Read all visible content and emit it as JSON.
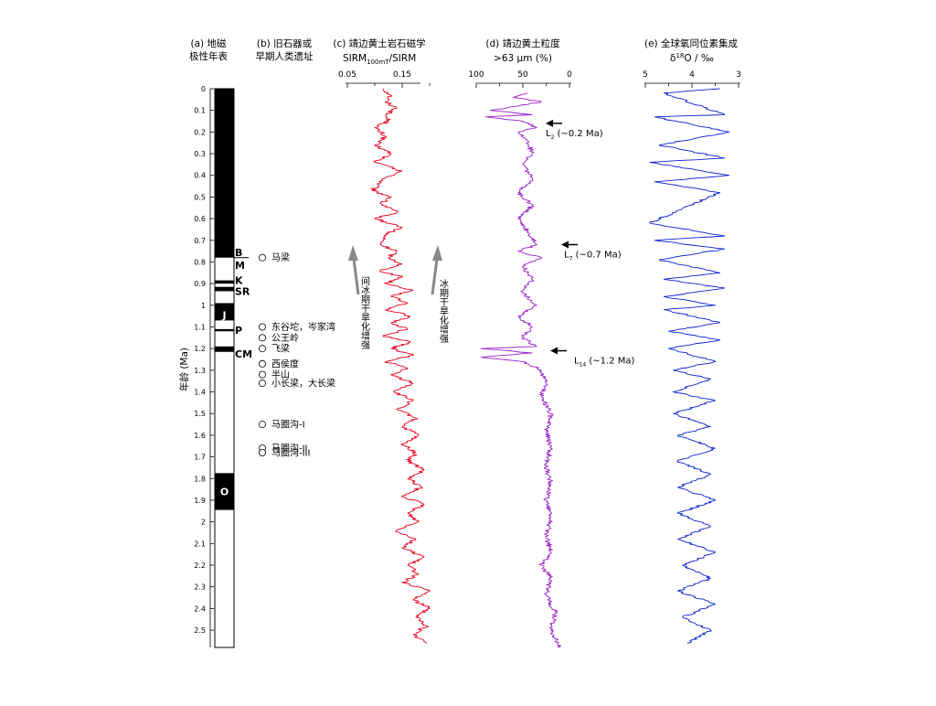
{
  "headers": {
    "a": [
      "(a) 地磁",
      "极性年表"
    ],
    "b": [
      "(b) 旧石器或",
      "早期人类遗址"
    ],
    "c_line1": "(c) 靖边黄土岩石磁学",
    "c_line2_main": "SIRM",
    "c_line2_sub": "100mT",
    "c_line2_tail": "/SIRM",
    "d_line1": "(d) 靖边黄土粒度",
    "d_line2": ">63 μm (%)",
    "e_line1": "(e) 全球氧同位素集成",
    "e_line2_delta": "δ",
    "e_line2_sup": "18",
    "e_line2_tail": "O / ‰"
  },
  "y_axis": {
    "label": "年龄 (Ma)",
    "min": 0,
    "max": 2.58,
    "ticks": [
      "0",
      "0.1",
      "0.2",
      "0.3",
      "0.4",
      "0.5",
      "0.6",
      "0.7",
      "0.8",
      "0.9",
      "1",
      "1.1",
      "1.2",
      "1.3",
      "1.4",
      "1.5",
      "1.6",
      "1.7",
      "1.8",
      "1.9",
      "2",
      "2.1",
      "2.2",
      "2.3",
      "2.4",
      "2.5"
    ]
  },
  "polarity": {
    "normal_intervals": [
      [
        0,
        0.78
      ],
      [
        0.885,
        0.9
      ],
      [
        0.915,
        0.935
      ],
      [
        0.99,
        1.07
      ],
      [
        1.11,
        1.12
      ],
      [
        1.19,
        1.215
      ],
      [
        1.775,
        1.945
      ]
    ],
    "labels": [
      {
        "text": "B",
        "age": 0.755
      },
      {
        "text": "M",
        "age": 0.815
      },
      {
        "text": "K",
        "age": 0.885
      },
      {
        "text": "SR",
        "age": 0.935
      },
      {
        "text": "J",
        "age": 1.045
      },
      {
        "text": "P",
        "age": 1.115
      },
      {
        "text": "CM",
        "age": 1.225
      },
      {
        "text": "O",
        "age": 1.86
      }
    ]
  },
  "sites": [
    {
      "name": "马梁",
      "age": 0.78
    },
    {
      "name": "东谷坨，岑家湾",
      "age": 1.1
    },
    {
      "name": "公王岭",
      "age": 1.15
    },
    {
      "name": "飞梁",
      "age": 1.2
    },
    {
      "name": "西侯度",
      "age": 1.27
    },
    {
      "name": "半山",
      "age": 1.32
    },
    {
      "name": "小长梁，大长梁",
      "age": 1.36
    },
    {
      "name": "马圈沟-I",
      "age": 1.55
    },
    {
      "name": "马圈沟-II",
      "age": 1.66
    },
    {
      "name": "马圈沟-III",
      "age": 1.68
    }
  ],
  "chart_data": [
    {
      "type": "line",
      "title": "(c) 靖边黄土岩石磁学",
      "xlabel": "SIRM100mT/SIRM",
      "ylabel": "年龄 (Ma)",
      "xlim": [
        0.05,
        0.2
      ],
      "xticks": [
        "0.05",
        "0.15"
      ],
      "color": "#e8001c",
      "series": [
        {
          "name": "",
          "points": [
            [
              0.115,
              0
            ],
            [
              0.13,
              0.03
            ],
            [
              0.12,
              0.06
            ],
            [
              0.14,
              0.09
            ],
            [
              0.12,
              0.12
            ],
            [
              0.125,
              0.15
            ],
            [
              0.1,
              0.18
            ],
            [
              0.12,
              0.22
            ],
            [
              0.1,
              0.26
            ],
            [
              0.13,
              0.3
            ],
            [
              0.1,
              0.34
            ],
            [
              0.15,
              0.38
            ],
            [
              0.12,
              0.41
            ],
            [
              0.095,
              0.47
            ],
            [
              0.13,
              0.5
            ],
            [
              0.11,
              0.53
            ],
            [
              0.14,
              0.57
            ],
            [
              0.1,
              0.6
            ],
            [
              0.15,
              0.64
            ],
            [
              0.12,
              0.67
            ],
            [
              0.11,
              0.72
            ],
            [
              0.14,
              0.75
            ],
            [
              0.125,
              0.78
            ],
            [
              0.15,
              0.81
            ],
            [
              0.11,
              0.84
            ],
            [
              0.15,
              0.87
            ],
            [
              0.12,
              0.9
            ],
            [
              0.17,
              0.93
            ],
            [
              0.13,
              0.96
            ],
            [
              0.16,
              0.99
            ],
            [
              0.12,
              1.02
            ],
            [
              0.165,
              1.05
            ],
            [
              0.13,
              1.08
            ],
            [
              0.16,
              1.11
            ],
            [
              0.115,
              1.14
            ],
            [
              0.165,
              1.17
            ],
            [
              0.13,
              1.2
            ],
            [
              0.17,
              1.23
            ],
            [
              0.12,
              1.26
            ],
            [
              0.16,
              1.29
            ],
            [
              0.13,
              1.32
            ],
            [
              0.17,
              1.36
            ],
            [
              0.135,
              1.4
            ],
            [
              0.17,
              1.44
            ],
            [
              0.14,
              1.48
            ],
            [
              0.175,
              1.52
            ],
            [
              0.15,
              1.56
            ],
            [
              0.18,
              1.6
            ],
            [
              0.15,
              1.64
            ],
            [
              0.175,
              1.68
            ],
            [
              0.16,
              1.72
            ],
            [
              0.19,
              1.76
            ],
            [
              0.16,
              1.8
            ],
            [
              0.185,
              1.84
            ],
            [
              0.15,
              1.88
            ],
            [
              0.19,
              1.92
            ],
            [
              0.16,
              1.96
            ],
            [
              0.18,
              2.0
            ],
            [
              0.14,
              2.04
            ],
            [
              0.175,
              2.08
            ],
            [
              0.15,
              2.12
            ],
            [
              0.19,
              2.16
            ],
            [
              0.16,
              2.2
            ],
            [
              0.18,
              2.24
            ],
            [
              0.15,
              2.28
            ],
            [
              0.2,
              2.32
            ],
            [
              0.17,
              2.36
            ],
            [
              0.2,
              2.4
            ],
            [
              0.175,
              2.44
            ],
            [
              0.195,
              2.48
            ],
            [
              0.17,
              2.52
            ],
            [
              0.195,
              2.56
            ]
          ]
        }
      ]
    },
    {
      "type": "line",
      "title": "(d) 靖边黄土粒度",
      "xlabel": ">63 μm (%)",
      "ylabel": "年龄 (Ma)",
      "xlim": [
        100,
        0
      ],
      "xticks": [
        "100",
        "50",
        "0"
      ],
      "color": "#9a1fc8",
      "series": [
        {
          "name": "",
          "points": [
            [
              45,
              0.02
            ],
            [
              60,
              0.04
            ],
            [
              30,
              0.06
            ],
            [
              55,
              0.08
            ],
            [
              85,
              0.1
            ],
            [
              40,
              0.12
            ],
            [
              90,
              0.13
            ],
            [
              50,
              0.15
            ],
            [
              35,
              0.18
            ],
            [
              55,
              0.2
            ],
            [
              45,
              0.24
            ],
            [
              40,
              0.3
            ],
            [
              50,
              0.35
            ],
            [
              40,
              0.42
            ],
            [
              55,
              0.48
            ],
            [
              40,
              0.54
            ],
            [
              55,
              0.6
            ],
            [
              45,
              0.66
            ],
            [
              35,
              0.72
            ],
            [
              55,
              0.75
            ],
            [
              30,
              0.78
            ],
            [
              50,
              0.82
            ],
            [
              40,
              0.88
            ],
            [
              50,
              0.94
            ],
            [
              35,
              1.0
            ],
            [
              55,
              1.05
            ],
            [
              40,
              1.1
            ],
            [
              50,
              1.15
            ],
            [
              35,
              1.19
            ],
            [
              95,
              1.2
            ],
            [
              40,
              1.22
            ],
            [
              95,
              1.24
            ],
            [
              50,
              1.26
            ],
            [
              30,
              1.3
            ],
            [
              25,
              1.36
            ],
            [
              30,
              1.42
            ],
            [
              20,
              1.5
            ],
            [
              25,
              1.58
            ],
            [
              20,
              1.66
            ],
            [
              25,
              1.74
            ],
            [
              20,
              1.82
            ],
            [
              25,
              1.9
            ],
            [
              20,
              1.98
            ],
            [
              25,
              2.06
            ],
            [
              20,
              2.14
            ],
            [
              30,
              2.2
            ],
            [
              20,
              2.26
            ],
            [
              25,
              2.34
            ],
            [
              15,
              2.42
            ],
            [
              20,
              2.5
            ],
            [
              10,
              2.58
            ]
          ]
        }
      ]
    },
    {
      "type": "line",
      "title": "(e) 全球氧同位素集成",
      "xlabel": "δ18O / ‰",
      "ylabel": "年龄 (Ma)",
      "xlim": [
        5,
        3
      ],
      "xticks": [
        "5",
        "4",
        "3"
      ],
      "color": "#0a1fd0",
      "series": [
        {
          "name": "",
          "points": [
            [
              3.4,
              0.0
            ],
            [
              4.6,
              0.02
            ],
            [
              3.3,
              0.12
            ],
            [
              4.8,
              0.13
            ],
            [
              3.2,
              0.2
            ],
            [
              4.7,
              0.26
            ],
            [
              3.3,
              0.32
            ],
            [
              4.9,
              0.34
            ],
            [
              3.2,
              0.4
            ],
            [
              4.8,
              0.43
            ],
            [
              3.4,
              0.48
            ],
            [
              4.9,
              0.62
            ],
            [
              3.3,
              0.68
            ],
            [
              4.8,
              0.7
            ],
            [
              3.3,
              0.74
            ],
            [
              4.7,
              0.79
            ],
            [
              3.4,
              0.85
            ],
            [
              4.6,
              0.88
            ],
            [
              3.3,
              0.92
            ],
            [
              4.6,
              0.96
            ],
            [
              3.5,
              1.0
            ],
            [
              4.6,
              1.02
            ],
            [
              3.4,
              1.08
            ],
            [
              4.5,
              1.12
            ],
            [
              3.4,
              1.16
            ],
            [
              4.5,
              1.2
            ],
            [
              3.5,
              1.26
            ],
            [
              4.4,
              1.3
            ],
            [
              3.6,
              1.34
            ],
            [
              4.4,
              1.4
            ],
            [
              3.5,
              1.44
            ],
            [
              4.4,
              1.5
            ],
            [
              3.6,
              1.56
            ],
            [
              4.3,
              1.6
            ],
            [
              3.5,
              1.66
            ],
            [
              4.3,
              1.72
            ],
            [
              3.6,
              1.78
            ],
            [
              4.3,
              1.84
            ],
            [
              3.5,
              1.9
            ],
            [
              4.3,
              1.96
            ],
            [
              3.6,
              2.02
            ],
            [
              4.3,
              2.08
            ],
            [
              3.5,
              2.14
            ],
            [
              4.2,
              2.2
            ],
            [
              3.6,
              2.26
            ],
            [
              4.3,
              2.32
            ],
            [
              3.5,
              2.38
            ],
            [
              4.2,
              2.44
            ],
            [
              3.6,
              2.5
            ],
            [
              4.1,
              2.56
            ]
          ]
        }
      ]
    }
  ],
  "annotations": {
    "arrows_c": [
      {
        "text": "间冰期干旱化增强"
      },
      {
        "text": "冰期干旱化增强"
      }
    ],
    "markers_d": [
      {
        "main": "L",
        "sub": "2",
        "tail": " (~0.2 Ma)",
        "age": 0.16
      },
      {
        "main": "L",
        "sub": "7",
        "tail": " (~0.7 Ma)",
        "age": 0.72
      },
      {
        "main": "L",
        "sub": "14",
        "tail": " (~1.2 Ma)",
        "age": 1.21
      }
    ]
  }
}
